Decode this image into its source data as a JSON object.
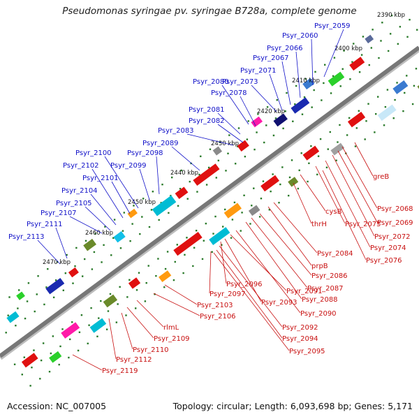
{
  "title": "Pseudomonas syringae pv. syringae B728a, complete genome",
  "footer": {
    "accession": "Accession: NC_007005",
    "summary": "Topology: circular; Length: 6,093,698 bp; Genes: 5,171"
  },
  "colors": {
    "blue_label": "#1010c8",
    "red_label": "#c81010",
    "backbone": "#777777"
  },
  "ticks": [
    "2390 kbp",
    "2400 kbp",
    "2410 kbp",
    "2420 kbp",
    "2430 kbp",
    "2440 kbp",
    "2450 kbp",
    "2460 kbp",
    "2470 kbp"
  ],
  "blue_labels": [
    "Psyr_2059",
    "Psyr_2060",
    "Psyr_2066",
    "Psyr_2067",
    "Psyr_2071",
    "Psyr_2073",
    "Psyr_2078",
    "Psyr_2080",
    "Psyr_2081",
    "Psyr_2082",
    "Psyr_2083",
    "Psyr_2089",
    "Psyr_2098",
    "Psyr_2099",
    "Psyr_2100",
    "Psyr_2101",
    "Psyr_2102",
    "Psyr_2104",
    "Psyr_2105",
    "Psyr_2107",
    "Psyr_2111",
    "Psyr_2113"
  ],
  "red_labels": [
    "greB",
    "Psyr_2068",
    "Psyr_2069",
    "Psyr_2072",
    "Psyr_2074",
    "Psyr_2075",
    "Psyr_2076",
    "cysB",
    "thrH",
    "Psyr_2084",
    "prpB",
    "Psyr_2086",
    "Psyr_2087",
    "Psyr_2088",
    "Psyr_2090",
    "Psyr_2091",
    "Psyr_2093",
    "Psyr_2096",
    "Psyr_2097",
    "Psyr_2092",
    "Psyr_2094",
    "Psyr_2095",
    "Psyr_2103",
    "Psyr_2106",
    "rlmL",
    "Psyr_2109",
    "Psyr_2110",
    "Psyr_2112",
    "Psyr_2119"
  ]
}
